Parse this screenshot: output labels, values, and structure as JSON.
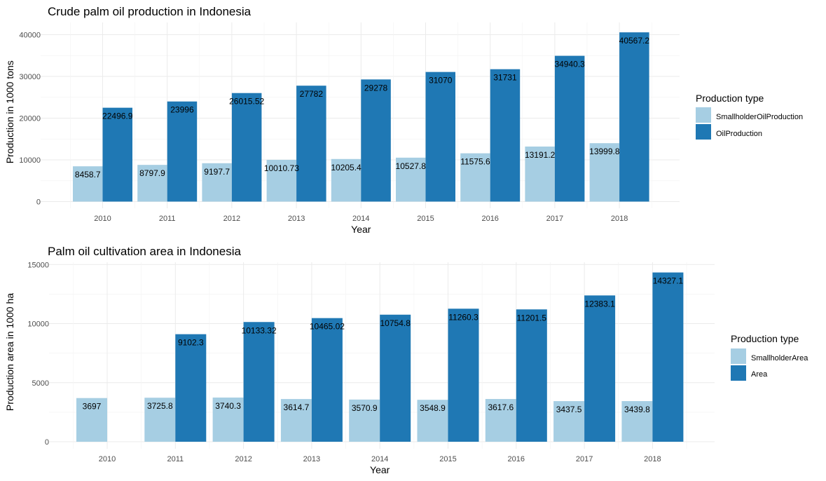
{
  "chart_data": [
    {
      "type": "bar",
      "title": "Crude palm oil production in Indonesia",
      "xlabel": "Year",
      "ylabel": "Production in 1000 tons",
      "categories": [
        "2010",
        "2011",
        "2012",
        "2013",
        "2014",
        "2015",
        "2016",
        "2017",
        "2018"
      ],
      "ylim": [
        0,
        41000
      ],
      "yticks": [
        0,
        10000,
        20000,
        30000,
        40000
      ],
      "grid": true,
      "legend": {
        "title": "Production type",
        "position": "right"
      },
      "series": [
        {
          "name": "SmallholderOilProduction",
          "color": "#a6cee3",
          "values": [
            8458.7,
            8797.9,
            9197.7,
            10010.73,
            10205.4,
            10527.8,
            11575.6,
            13191.2,
            13999.8
          ],
          "labels": [
            "8458.7",
            "8797.9",
            "9197.7",
            "10010.73",
            "10205.4",
            "10527.8",
            "11575.6",
            "13191.2",
            "13999.8"
          ]
        },
        {
          "name": "OilProduction",
          "color": "#1f78b4",
          "values": [
            22496.9,
            23996,
            26015.52,
            27782,
            29278,
            31070,
            31731,
            34940.3,
            40567.2
          ],
          "labels": [
            "22496.9",
            "23996",
            "26015.52",
            "27782",
            "29278",
            "31070",
            "31731",
            "34940.3",
            "40567.2"
          ]
        }
      ]
    },
    {
      "type": "bar",
      "title": "Palm oil cultivation area in Indonesia",
      "xlabel": "Year",
      "ylabel": "Production area in 1000 ha",
      "categories": [
        "2010",
        "2011",
        "2012",
        "2013",
        "2014",
        "2015",
        "2016",
        "2017",
        "2018"
      ],
      "ylim": [
        0,
        15000
      ],
      "yticks": [
        0,
        5000,
        10000,
        15000
      ],
      "grid": true,
      "legend": {
        "title": "Production type",
        "position": "right"
      },
      "series": [
        {
          "name": "SmallholderArea",
          "color": "#a6cee3",
          "values": [
            3697,
            3725.8,
            3740.3,
            3614.7,
            3570.9,
            3548.9,
            3617.6,
            3437.5,
            3439.8
          ],
          "labels": [
            "3697",
            "3725.8",
            "3740.3",
            "3614.7",
            "3570.9",
            "3548.9",
            "3617.6",
            "3437.5",
            "3439.8"
          ]
        },
        {
          "name": "Area",
          "color": "#1f78b4",
          "values": [
            null,
            9102.3,
            10133.32,
            10465.02,
            10754.8,
            11260.3,
            11201.5,
            12383.1,
            14327.1
          ],
          "labels": [
            null,
            "9102.3",
            "10133.32",
            "10465.02",
            "10754.8",
            "11260.3",
            "11201.5",
            "12383.1",
            "14327.1"
          ]
        }
      ]
    }
  ]
}
